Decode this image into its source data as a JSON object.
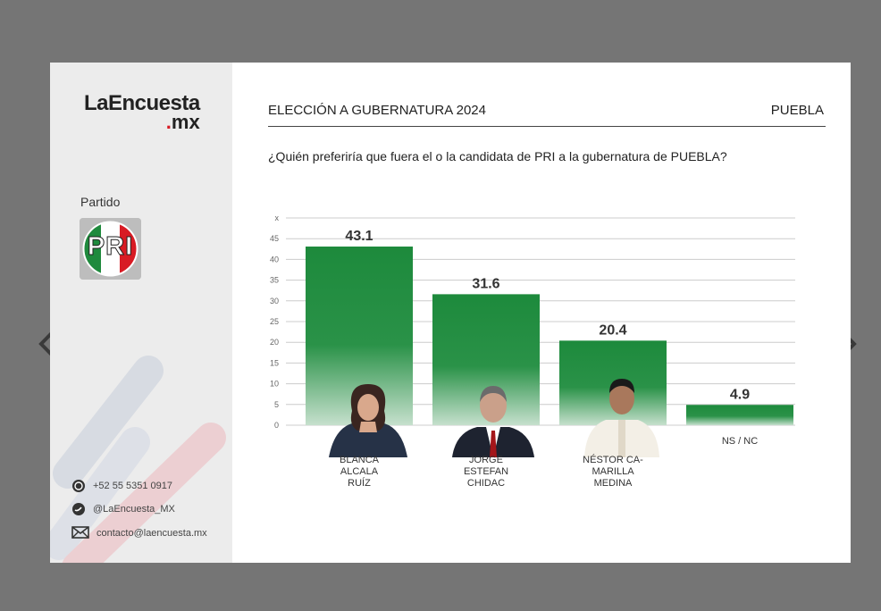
{
  "brand": {
    "line1": "LaEncuesta",
    "line2_dot": ".",
    "line2": "mx"
  },
  "sidebar": {
    "partido_label": "Partido",
    "party_logo_text": "PRI",
    "contacts": {
      "phone": "+52 55 5351 0917",
      "twitter": "@LaEncuesta_MX",
      "email": "contacto@laencuesta.mx"
    }
  },
  "header": {
    "title": "ELECCIÓN A GUBERNATURA 2024",
    "state": "PUEBLA"
  },
  "question": "¿Quién preferiría que fuera el o la candidata de PRI a la gubernatura de PUEBLA?",
  "colors": {
    "bar": "#1d8a3c",
    "bar_fade": "#e6f1e9",
    "grid": "#cccccc",
    "brand_red": "#d81b24"
  },
  "icons": [
    "chevron-left-icon",
    "chevron-right-icon",
    "whatsapp-icon",
    "twitter-icon",
    "email-icon"
  ],
  "chart_data": {
    "type": "bar",
    "categories": [
      "BLANCA ALCALA RUÍZ",
      "JORGE ESTEFAN CHIDAC",
      "NÉSTOR CA-MARILLA MEDINA",
      "NS / NC"
    ],
    "category_lines": [
      [
        "BLANCA",
        "ALCALA",
        "RUÍZ"
      ],
      [
        "JORGE",
        "ESTEFAN",
        "CHIDAC"
      ],
      [
        "NÉSTOR CA-",
        "MARILLA",
        "MEDINA"
      ],
      [
        "NS / NC"
      ]
    ],
    "values": [
      43.1,
      31.6,
      20.4,
      4.9
    ],
    "value_labels": [
      "43.1",
      "31.6",
      "20.4",
      "4.9"
    ],
    "y_ticks": [
      "0",
      "5",
      "10",
      "15",
      "20",
      "25",
      "30",
      "35",
      "40",
      "45",
      "x"
    ],
    "ylim": [
      0,
      50
    ],
    "grid": true,
    "title": "",
    "xlabel": "",
    "ylabel": ""
  }
}
